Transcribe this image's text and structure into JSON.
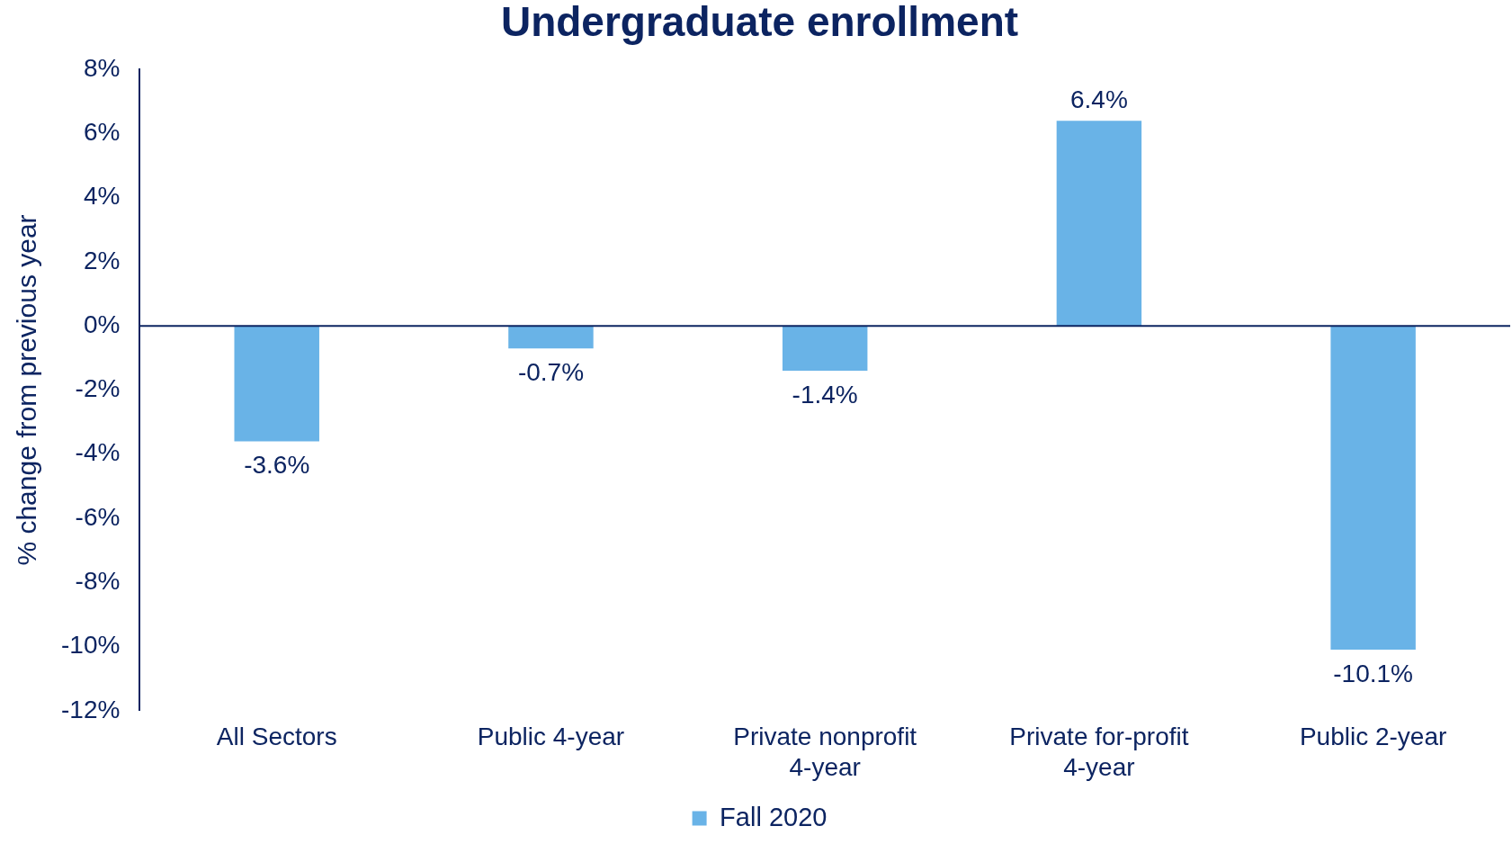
{
  "chart_data": {
    "type": "bar",
    "title": "Undergraduate enrollment",
    "ylabel": "% change from previous year",
    "categories": [
      "All Sectors",
      "Public 4-year",
      "Private nonprofit 4-year",
      "Private for-profit 4-year",
      "Public 2-year"
    ],
    "series": [
      {
        "name": "Fall 2020",
        "color": "#69b3e7",
        "values": [
          -3.6,
          -0.7,
          -1.4,
          6.4,
          -10.1
        ],
        "value_labels": [
          "-3.6%",
          "-0.7%",
          "-1.4%",
          "6.4%",
          "-10.1%"
        ]
      }
    ],
    "ylim": [
      -12,
      8
    ],
    "yticks": [
      {
        "value": -12,
        "label": "-12%"
      },
      {
        "value": -10,
        "label": "-10%"
      },
      {
        "value": -8,
        "label": "-8%"
      },
      {
        "value": -6,
        "label": "-6%"
      },
      {
        "value": -4,
        "label": "-4%"
      },
      {
        "value": -2,
        "label": "-2%"
      },
      {
        "value": 0,
        "label": "0%"
      },
      {
        "value": 2,
        "label": "2%"
      },
      {
        "value": 4,
        "label": "4%"
      },
      {
        "value": 6,
        "label": "6%"
      },
      {
        "value": 8,
        "label": "8%"
      }
    ],
    "grid": false,
    "legend": "bottom"
  }
}
